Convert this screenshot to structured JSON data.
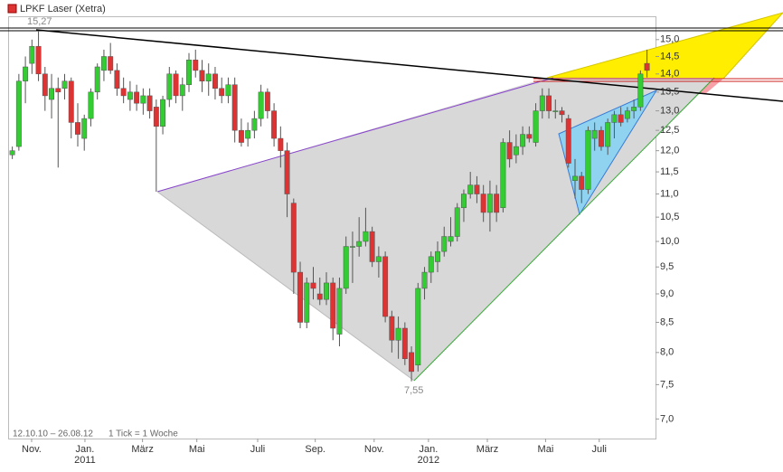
{
  "chart_data": {
    "type": "candlestick",
    "title": "LPKF Laser (Xetra)",
    "date_range": "12.10.10 – 26.08.12",
    "tick_note": "1 Tick = 1 Woche",
    "annotations": [
      "15,27",
      "7,55"
    ],
    "log_scale": true,
    "up_color": "#33cc33",
    "down_color": "#dd3333",
    "title_color": "#dd3333",
    "categories": [
      null,
      null,
      null,
      null,
      null,
      null,
      null,
      null,
      null,
      null,
      null,
      null,
      null,
      null,
      null,
      null,
      null,
      null,
      null,
      null,
      null,
      null,
      null,
      null,
      null,
      null,
      null,
      null,
      null,
      null,
      null,
      null,
      null,
      null,
      null,
      null,
      null,
      null,
      null,
      null,
      null,
      null,
      null,
      null,
      null,
      null,
      null,
      null,
      null,
      null,
      null,
      null,
      null,
      null,
      null,
      null,
      null,
      null,
      null,
      null,
      null,
      null,
      null,
      null,
      null,
      null,
      null,
      null,
      null,
      null,
      null,
      null,
      null,
      null,
      null,
      null,
      null,
      null,
      null,
      null,
      null,
      null,
      null,
      null,
      null,
      null,
      null,
      null,
      null,
      null,
      null,
      null,
      null,
      null,
      null,
      null,
      null,
      null
    ],
    "open": [
      11.9,
      12.1,
      13.8,
      14.3,
      14.8,
      14.0,
      13.3,
      13.6,
      13.6,
      13.8,
      12.7,
      12.3,
      12.8,
      13.5,
      14.1,
      14.5,
      14.1,
      13.6,
      13.3,
      13.5,
      13.2,
      13.4,
      13.1,
      12.6,
      13.3,
      14.0,
      13.4,
      13.7,
      14.4,
      14.1,
      13.8,
      14.0,
      13.6,
      13.4,
      13.7,
      12.5,
      12.3,
      12.5,
      12.8,
      13.5,
      13.0,
      12.3,
      12.0,
      10.8,
      9.4,
      8.5,
      9.2,
      9.0,
      8.9,
      9.2,
      8.3,
      9.1,
      9.9,
      9.9,
      10.0,
      10.2,
      9.6,
      9.7,
      8.6,
      8.2,
      8.4,
      8.0,
      7.8,
      9.1,
      9.4,
      9.6,
      9.8,
      10.0,
      10.1,
      10.7,
      11.0,
      11.2,
      11.0,
      10.6,
      11.0,
      10.7,
      12.2,
      11.9,
      12.1,
      12.4,
      12.2,
      13.0,
      13.4,
      13.0,
      13.0,
      12.8,
      11.3,
      11.4,
      11.1,
      12.3,
      12.5,
      12.1,
      12.7,
      12.9,
      12.8,
      13.0,
      13.1,
      14.3
    ],
    "high": [
      12.1,
      14.0,
      14.5,
      15.0,
      15.27,
      14.2,
      14.0,
      13.9,
      14.0,
      13.9,
      13.2,
      12.9,
      13.6,
      14.3,
      14.7,
      14.9,
      14.3,
      13.9,
      13.8,
      13.7,
      13.6,
      13.6,
      13.3,
      13.4,
      14.2,
      14.1,
      13.9,
      14.6,
      14.7,
      14.4,
      14.3,
      14.2,
      13.9,
      13.9,
      13.9,
      12.8,
      12.7,
      13.0,
      13.7,
      13.6,
      13.2,
      12.6,
      12.2,
      10.9,
      9.6,
      9.3,
      9.5,
      9.3,
      9.4,
      9.3,
      9.3,
      10.1,
      10.2,
      10.5,
      10.7,
      10.3,
      9.9,
      9.8,
      8.7,
      8.6,
      8.5,
      8.1,
      9.2,
      9.5,
      9.8,
      10.0,
      10.3,
      10.5,
      10.8,
      11.1,
      11.5,
      11.4,
      11.2,
      11.3,
      11.2,
      12.3,
      12.5,
      12.4,
      12.6,
      12.6,
      13.2,
      13.6,
      13.6,
      13.3,
      13.1,
      12.9,
      11.8,
      11.5,
      12.6,
      12.7,
      12.6,
      12.8,
      13.0,
      13.1,
      13.1,
      13.3,
      14.1,
      14.7
    ],
    "low": [
      11.8,
      12.0,
      13.2,
      14.0,
      13.8,
      13.0,
      12.8,
      11.6,
      13.3,
      12.3,
      12.1,
      12.0,
      12.6,
      13.3,
      13.8,
      14.0,
      13.4,
      13.2,
      13.0,
      13.0,
      12.9,
      12.8,
      11.05,
      12.4,
      13.1,
      13.2,
      13.0,
      13.5,
      13.9,
      13.5,
      13.4,
      13.3,
      13.2,
      13.2,
      12.2,
      12.1,
      12.1,
      12.3,
      12.6,
      12.8,
      12.1,
      11.6,
      10.5,
      9.0,
      8.4,
      8.4,
      8.9,
      8.8,
      8.8,
      8.2,
      8.1,
      9.0,
      9.2,
      9.7,
      9.9,
      9.5,
      9.3,
      8.5,
      8.0,
      7.9,
      7.8,
      7.55,
      7.7,
      8.9,
      9.2,
      9.4,
      9.7,
      9.9,
      10.0,
      10.4,
      10.9,
      10.8,
      10.4,
      10.2,
      10.4,
      10.6,
      11.6,
      11.7,
      11.9,
      12.2,
      12.1,
      12.8,
      12.8,
      12.8,
      12.7,
      11.6,
      10.9,
      10.8,
      11.0,
      12.0,
      12.0,
      11.9,
      12.3,
      12.6,
      12.7,
      12.8,
      13.0,
      13.9
    ],
    "close": [
      12.0,
      13.8,
      14.2,
      14.8,
      14.0,
      13.4,
      13.6,
      13.5,
      13.8,
      12.7,
      12.4,
      12.8,
      13.5,
      14.2,
      14.5,
      14.1,
      13.6,
      13.4,
      13.5,
      13.2,
      13.4,
      13.0,
      12.6,
      13.3,
      14.0,
      13.4,
      13.7,
      14.4,
      14.1,
      13.8,
      14.0,
      13.6,
      13.4,
      13.7,
      12.5,
      12.2,
      12.5,
      12.8,
      13.5,
      13.0,
      12.3,
      12.0,
      11.0,
      9.4,
      8.5,
      9.2,
      9.1,
      8.9,
      9.2,
      8.4,
      9.1,
      9.9,
      9.9,
      10.0,
      10.2,
      9.6,
      9.7,
      8.6,
      8.2,
      8.4,
      7.9,
      7.7,
      9.1,
      9.4,
      9.7,
      9.8,
      10.1,
      10.1,
      10.7,
      11.0,
      11.2,
      11.0,
      10.6,
      11.0,
      10.6,
      12.2,
      11.8,
      12.1,
      12.4,
      12.3,
      13.0,
      13.4,
      13.0,
      13.0,
      12.9,
      11.7,
      11.4,
      11.1,
      12.5,
      12.5,
      12.1,
      12.7,
      12.9,
      12.7,
      13.0,
      13.1,
      14.0,
      14.1
    ],
    "xlim": [
      -0.5,
      98.3
    ],
    "xticks": [
      {
        "value": 2.95,
        "label": "Nov."
      },
      {
        "value": 11.1,
        "label": "Jan."
      },
      {
        "value": 19.9,
        "label": "März"
      },
      {
        "value": 28.2,
        "label": "Mai"
      },
      {
        "value": 37.5,
        "label": "Juli"
      },
      {
        "value": 46.3,
        "label": "Sep."
      },
      {
        "value": 55.3,
        "label": "Nov."
      },
      {
        "value": 63.6,
        "label": "Jan."
      },
      {
        "value": 72.6,
        "label": "März"
      },
      {
        "value": 81.5,
        "label": "Mai"
      },
      {
        "value": 89.7,
        "label": "Juli"
      }
    ],
    "year_labels": [
      {
        "value": 11.1,
        "label": "2011"
      },
      {
        "value": 63.6,
        "label": "2012"
      }
    ],
    "ylim": [
      6.73,
      15.72
    ],
    "yticks": [
      {
        "value": 15,
        "label": "15,0"
      },
      {
        "value": 14.5,
        "label": "14,5"
      },
      {
        "value": 14,
        "label": "14,0"
      },
      {
        "value": 13.5,
        "label": "13,5"
      },
      {
        "value": 13,
        "label": "13,0"
      },
      {
        "value": 12.5,
        "label": "12,5"
      },
      {
        "value": 12,
        "label": "12,0"
      },
      {
        "value": 11.5,
        "label": "11,5"
      },
      {
        "value": 11,
        "label": "11,0"
      },
      {
        "value": 10.5,
        "label": "10,5"
      },
      {
        "value": 10,
        "label": "10,0"
      },
      {
        "value": 9.5,
        "label": "9,5"
      },
      {
        "value": 9,
        "label": "9,0"
      },
      {
        "value": 8.5,
        "label": "8,5"
      },
      {
        "value": 8,
        "label": "8,0"
      },
      {
        "value": 7.5,
        "label": "7,5"
      },
      {
        "value": 7,
        "label": "7,0"
      }
    ]
  }
}
